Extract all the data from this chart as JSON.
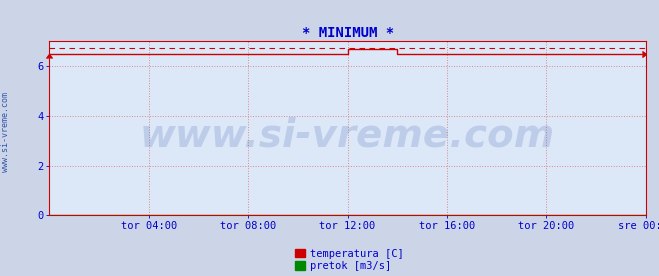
{
  "title": "* MINIMUM *",
  "title_color": "#0000cc",
  "title_fontsize": 10,
  "bg_color": "#ccd5e8",
  "plot_bg_color": "#dce8f8",
  "grid_color": "#dd8888",
  "grid_style": ":",
  "xlim": [
    0,
    288
  ],
  "ylim": [
    0,
    7
  ],
  "yticks": [
    0,
    2,
    4,
    6
  ],
  "xtick_labels": [
    "tor 04:00",
    "tor 08:00",
    "tor 12:00",
    "tor 16:00",
    "tor 20:00",
    "sre 00:00"
  ],
  "xtick_positions": [
    48,
    96,
    144,
    192,
    240,
    288
  ],
  "temp_color": "#cc0000",
  "flow_color": "#008800",
  "watermark": "www.si-vreme.com",
  "watermark_color": "#3355aa",
  "watermark_alpha": 0.18,
  "watermark_fontsize": 28,
  "side_text": "www.si-vreme.com",
  "side_text_color": "#3355aa",
  "side_text_fontsize": 6,
  "legend_temp_label": "temperatura [C]",
  "legend_flow_label": "pretok [m3/s]",
  "tick_fontsize": 7.5,
  "tick_color": "#0000cc",
  "temp_data_x": [
    0,
    144,
    144,
    168,
    168,
    240,
    240,
    288
  ],
  "temp_data_y": [
    6.5,
    6.5,
    6.7,
    6.7,
    6.5,
    6.5,
    6.5,
    6.5
  ],
  "avg_line_y": 6.75,
  "flow_data_x": [
    0,
    288
  ],
  "flow_data_y": [
    0.01,
    0.01
  ],
  "line_width": 1.0,
  "spine_color": "#cc0000"
}
